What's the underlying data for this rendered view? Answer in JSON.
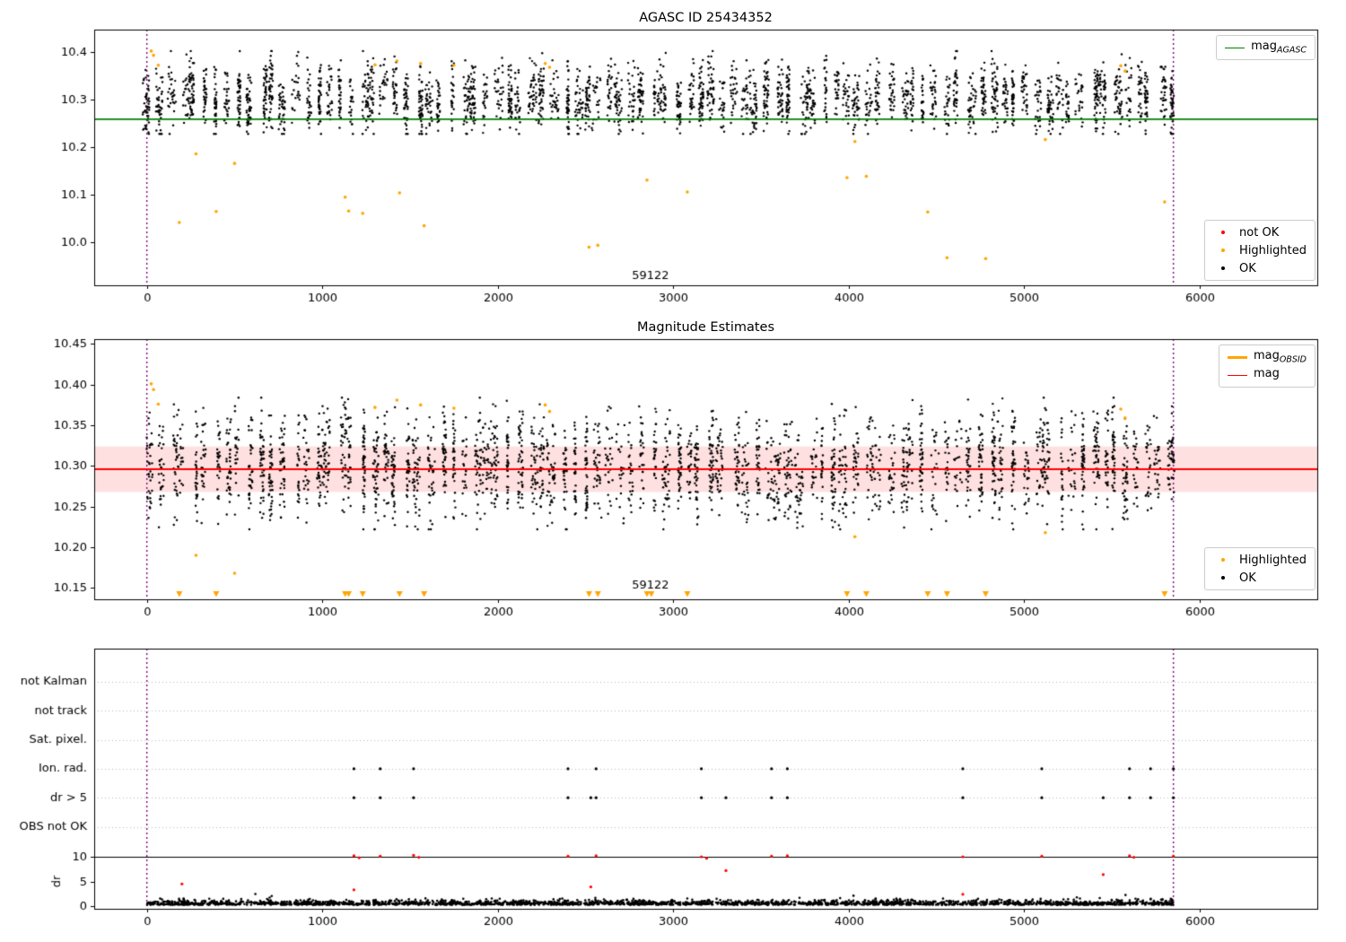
{
  "figure": {
    "titles": {
      "plot1": "AGASC ID 25434352",
      "plot2": "Magnitude Estimates"
    },
    "legends": {
      "plot1_line": {
        "pre": "mag",
        "sub": "AGASC"
      },
      "plot1_markers": [
        "not OK",
        "Highlighted",
        "OK"
      ],
      "plot2_lines": [
        {
          "pre": "mag",
          "sub": "OBSID"
        },
        {
          "pre": "mag",
          "sub": ""
        }
      ],
      "plot2_markers": [
        "Highlighted",
        "OK"
      ]
    },
    "colors": {
      "ok": "#000000",
      "highlighted": "#FFA500",
      "not_ok": "#FF0000",
      "agasc_line": "#008000",
      "mag_line": "#FF0000",
      "obsid_line": "#FFA500",
      "vline": "#800080",
      "band": "rgba(255,0,0,0.12)",
      "grid": "#b8b8b8",
      "frame": "#000000"
    }
  },
  "chart_data": [
    {
      "type": "scatter",
      "title": "AGASC ID 25434352",
      "xlim": [
        -300,
        6670
      ],
      "ylim": [
        9.91,
        10.447
      ],
      "xticks": [
        0,
        1000,
        2000,
        3000,
        4000,
        5000,
        6000
      ],
      "xtick_labels": [
        "0",
        "1000",
        "2000",
        "3000",
        "4000",
        "5000",
        "6000"
      ],
      "yticks": [
        10.0,
        10.1,
        10.2,
        10.3,
        10.4
      ],
      "ytick_labels": [
        "10.0",
        "10.1",
        "10.2",
        "10.3",
        "10.4"
      ],
      "ref_line": {
        "label": "mag_AGASC",
        "value": 10.259
      },
      "vlines": [
        0,
        5850
      ],
      "annotation": {
        "text": "59122",
        "x": 2870
      },
      "series_legend": [
        "not OK",
        "Highlighted",
        "OK"
      ],
      "highlighted_points": [
        [
          25,
          10.402
        ],
        [
          38,
          10.393
        ],
        [
          65,
          10.372
        ],
        [
          185,
          10.042
        ],
        [
          280,
          10.186
        ],
        [
          395,
          10.065
        ],
        [
          500,
          10.166
        ],
        [
          1130,
          10.095
        ],
        [
          1150,
          10.066
        ],
        [
          1230,
          10.061
        ],
        [
          1300,
          10.373
        ],
        [
          1425,
          10.381
        ],
        [
          1440,
          10.104
        ],
        [
          1560,
          10.376
        ],
        [
          1580,
          10.035
        ],
        [
          1750,
          10.372
        ],
        [
          2270,
          10.376
        ],
        [
          2295,
          10.368
        ],
        [
          2520,
          9.99
        ],
        [
          2570,
          9.994
        ],
        [
          2850,
          10.131
        ],
        [
          3080,
          10.106
        ],
        [
          3990,
          10.136
        ],
        [
          4035,
          10.212
        ],
        [
          4100,
          10.139
        ],
        [
          4450,
          10.064
        ],
        [
          4560,
          9.968
        ],
        [
          4780,
          9.966
        ],
        [
          5120,
          10.216
        ],
        [
          5550,
          10.371
        ],
        [
          5575,
          10.36
        ],
        [
          5800,
          10.085
        ]
      ],
      "ok_points_gen": {
        "seed": 7,
        "n_clusters": 92,
        "x_start": 15,
        "x_end": 5840,
        "pts_min": 22,
        "pts_max": 48,
        "y_mean": 10.302,
        "y_std": 0.032,
        "cluster_spread": 0.018,
        "y_min": 10.228,
        "y_max": 10.402
      }
    },
    {
      "type": "scatter",
      "title": "Magnitude Estimates",
      "xlim": [
        -300,
        6670
      ],
      "ylim": [
        10.136,
        10.456
      ],
      "xticks": [
        0,
        1000,
        2000,
        3000,
        4000,
        5000,
        6000
      ],
      "xtick_labels": [
        "0",
        "1000",
        "2000",
        "3000",
        "4000",
        "5000",
        "6000"
      ],
      "yticks": [
        10.15,
        10.2,
        10.25,
        10.3,
        10.35,
        10.4,
        10.45
      ],
      "ytick_labels": [
        "10.15",
        "10.20",
        "10.25",
        "10.30",
        "10.35",
        "10.40",
        "10.45"
      ],
      "ref_line": {
        "label": "mag",
        "value": 10.296
      },
      "band": [
        10.268,
        10.324
      ],
      "vlines": [
        0,
        5850
      ],
      "annotation": {
        "text": "59122",
        "x": 2870
      },
      "series_legend": [
        "mag_OBSID",
        "mag",
        "Highlighted",
        "OK"
      ],
      "highlighted_points": [
        [
          25,
          10.401
        ],
        [
          38,
          10.394
        ],
        [
          65,
          10.376
        ],
        [
          280,
          10.19
        ],
        [
          500,
          10.168
        ],
        [
          1300,
          10.372
        ],
        [
          1425,
          10.381
        ],
        [
          1560,
          10.375
        ],
        [
          1750,
          10.371
        ],
        [
          2270,
          10.375
        ],
        [
          2295,
          10.367
        ],
        [
          4035,
          10.213
        ],
        [
          5120,
          10.218
        ],
        [
          5550,
          10.37
        ],
        [
          5575,
          10.359
        ]
      ],
      "clipped_below_x": [
        185,
        395,
        1130,
        1150,
        1230,
        1440,
        1580,
        2520,
        2570,
        2850,
        2875,
        3080,
        3990,
        4100,
        4450,
        4560,
        4780,
        5800
      ],
      "ok_points_gen": {
        "seed": 11,
        "n_clusters": 92,
        "x_start": 15,
        "x_end": 5840,
        "pts_min": 22,
        "pts_max": 48,
        "y_mean": 10.297,
        "y_std": 0.03,
        "cluster_spread": 0.016,
        "y_min": 10.222,
        "y_max": 10.384
      }
    },
    {
      "type": "scatter",
      "title": "",
      "xlim": [
        -300,
        6670
      ],
      "xticks": [
        0,
        1000,
        2000,
        3000,
        4000,
        5000,
        6000
      ],
      "xtick_labels": [
        "0",
        "1000",
        "2000",
        "3000",
        "4000",
        "5000",
        "6000"
      ],
      "rows": [
        {
          "label": "not Kalman",
          "points": []
        },
        {
          "label": "not track",
          "points": []
        },
        {
          "label": "Sat. pixel.",
          "points": []
        },
        {
          "label": "Ion. rad.",
          "points": [
            1180,
            1330,
            1520,
            2400,
            2560,
            3160,
            3560,
            3650,
            4650,
            5100,
            5600,
            5720,
            5850
          ]
        },
        {
          "label": "dr > 5",
          "points": [
            1180,
            1330,
            1520,
            2400,
            2530,
            2560,
            3160,
            3300,
            3560,
            3650,
            4650,
            5100,
            5450,
            5600,
            5720,
            5850
          ]
        },
        {
          "label": "OBS not OK",
          "points": []
        }
      ],
      "dr_axis_label": "dr",
      "dr_ticks": [
        0,
        5,
        10
      ],
      "dr_tick_labels": [
        "0",
        "5",
        "10"
      ],
      "dr_threshold": 10,
      "vlines": [
        0,
        5850
      ],
      "not_ok_points": [
        [
          1180,
          10.2
        ],
        [
          1210,
          9.8
        ],
        [
          1330,
          10.1
        ],
        [
          1520,
          10.3
        ],
        [
          1550,
          9.9
        ],
        [
          2400,
          10.1
        ],
        [
          2560,
          10.2
        ],
        [
          3160,
          10.0
        ],
        [
          3190,
          9.7
        ],
        [
          3560,
          10.1
        ],
        [
          3650,
          10.2
        ],
        [
          4650,
          10.0
        ],
        [
          5100,
          10.1
        ],
        [
          5600,
          10.2
        ],
        [
          5625,
          9.9
        ],
        [
          5850,
          10.1
        ],
        [
          200,
          4.5
        ],
        [
          1180,
          3.3
        ],
        [
          2530,
          3.9
        ],
        [
          3300,
          7.2
        ],
        [
          4650,
          2.4
        ],
        [
          5450,
          6.4
        ]
      ],
      "dr_points_gen": {
        "seed": 23,
        "count": 2300,
        "x_start": 0,
        "x_end": 5850,
        "y_base": 0.25,
        "y_scale": 0.45,
        "y_max": 3.2
      }
    }
  ]
}
